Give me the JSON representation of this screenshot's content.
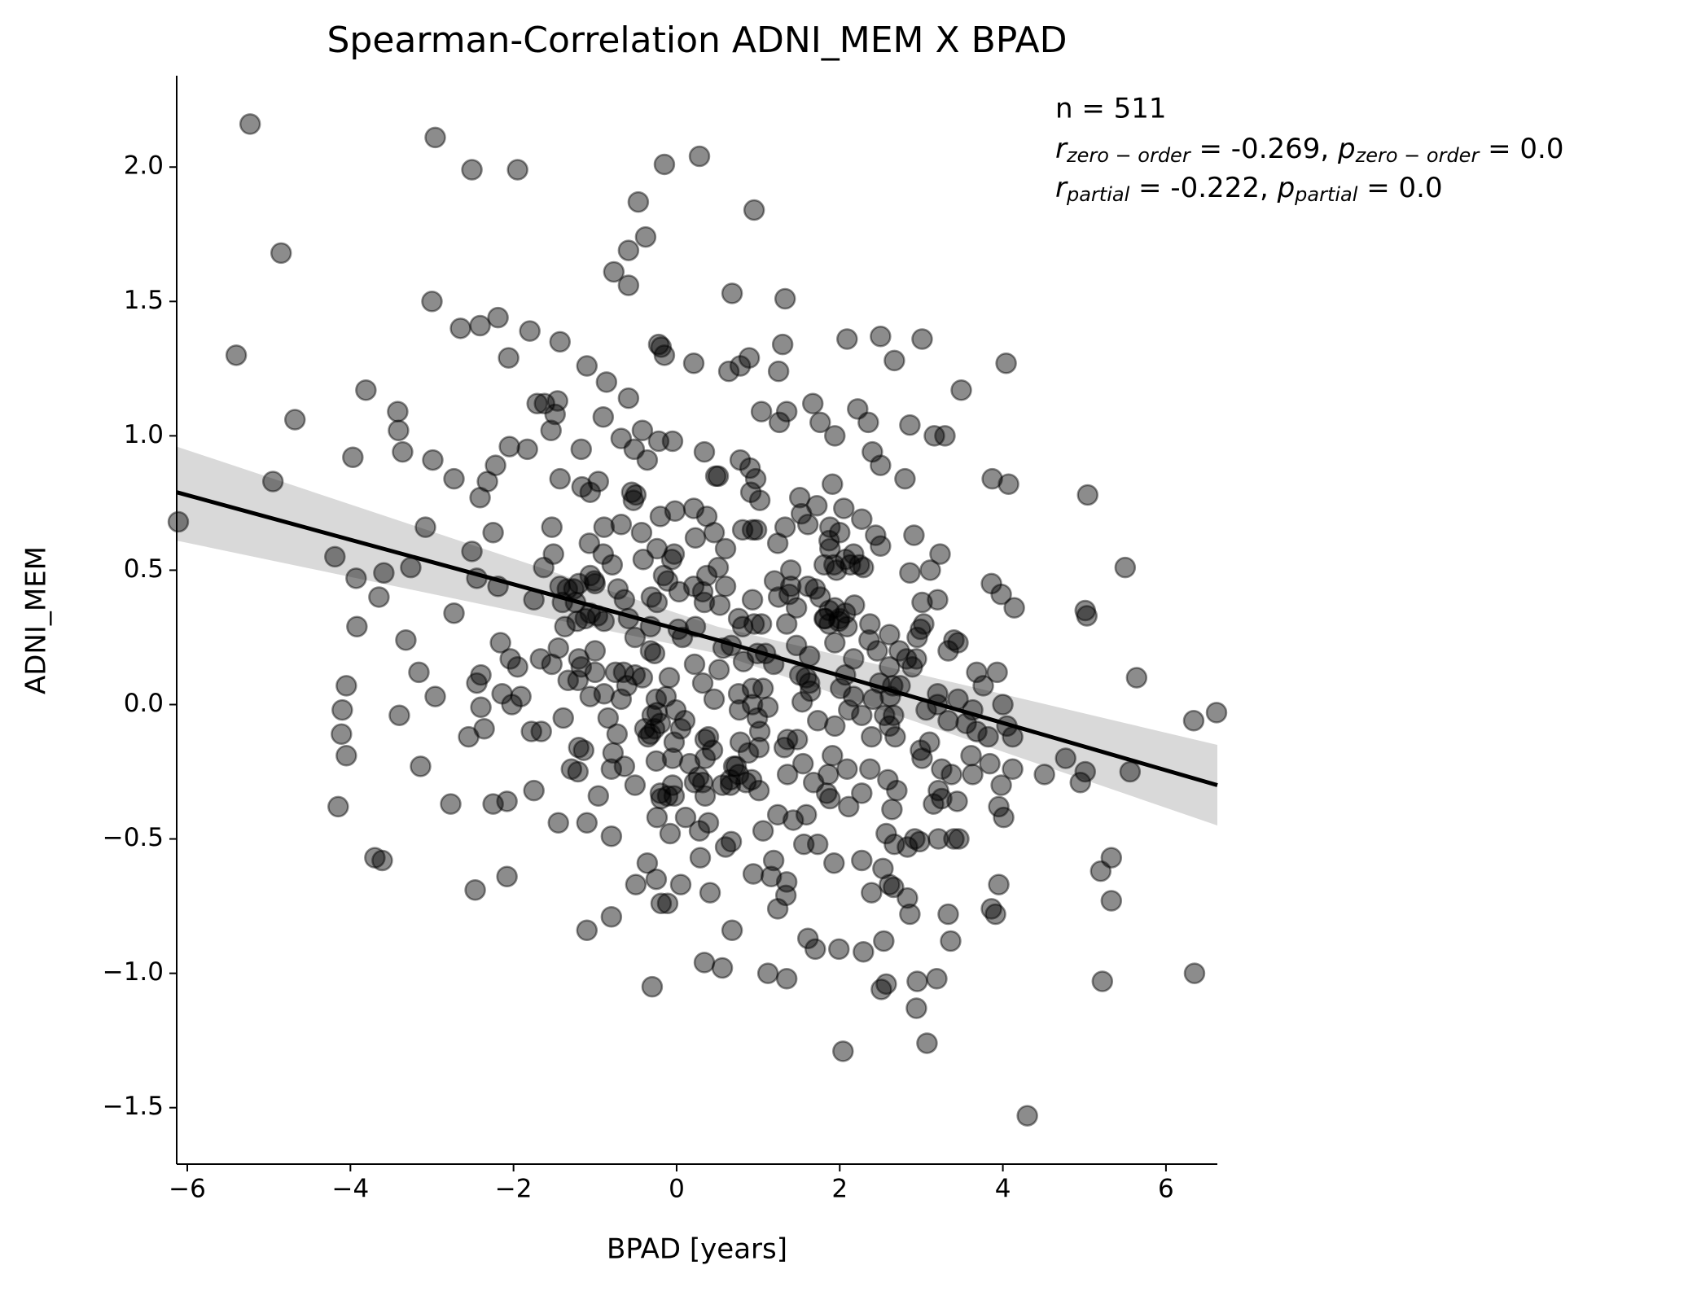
{
  "chart_data": {
    "type": "scatter",
    "title": "Spearman-Correlation ADNI_MEM X BPAD",
    "x_label": "BPAD [years]",
    "y_label": "ADNI_MEM",
    "color": "#000000",
    "alpha": 0.45,
    "xlim": [
      -6.13,
      6.63
    ],
    "ylim": [
      -1.71,
      2.34
    ],
    "xticks": [
      {
        "value": -6,
        "label": "−6"
      },
      {
        "value": -4,
        "label": "−4"
      },
      {
        "value": -2,
        "label": "−2"
      },
      0,
      2,
      4,
      6
    ],
    "yticks": [
      {
        "value": -1.5,
        "label": "−1.5"
      },
      {
        "value": -1.0,
        "label": "−1.0"
      },
      {
        "value": -0.5,
        "label": "−0.5"
      },
      {
        "value": 0.0,
        "label": "0.0"
      },
      {
        "value": 0.5,
        "label": "0.5"
      },
      {
        "value": 1.0,
        "label": "1.0"
      },
      {
        "value": 1.5,
        "label": "1.5"
      },
      {
        "value": 2.0,
        "label": "2.0"
      }
    ],
    "annotations": [
      "n = 511",
      [
        "r",
        "zero − order",
        " = -0.269, ",
        "p",
        "zero − order",
        " = 0.0"
      ],
      [
        "r",
        "partial",
        " = -0.222, ",
        "p",
        "partial",
        " = 0.0"
      ]
    ],
    "fit": {
      "color": "#000000",
      "band_color": "#d9d9d9",
      "x": [
        -6.13,
        0.5,
        6.63
      ],
      "values": [
        0.79,
        0.24,
        -0.3
      ],
      "ci_low": [
        0.61,
        0.19,
        -0.45
      ],
      "ci_high": [
        0.96,
        0.29,
        -0.15
      ]
    },
    "x": [
      -5.23,
      -5.4,
      -4.95,
      -6.11,
      -4.85,
      -4.68,
      -2.96,
      -2.51,
      -1.95,
      -3.0,
      -2.65,
      -2.41,
      -2.19,
      -2.06,
      -1.8,
      -1.43,
      -3.81,
      -3.42,
      -3.41,
      -3.36,
      -3.97,
      -2.99,
      -2.73,
      -2.32,
      -2.22,
      -2.05,
      -1.83,
      -1.71,
      -1.62,
      -1.49,
      -1.54,
      -1.46,
      -1.1,
      -0.86,
      -0.9,
      -1.17,
      -1.43,
      -1.16,
      -1.06,
      -0.96,
      -4.19,
      -3.93,
      -3.59,
      -3.26,
      -3.08,
      -3.65,
      -3.92,
      -3.32,
      -3.16,
      -4.05,
      -4.1,
      -4.11,
      -4.05,
      -3.4,
      -2.96,
      -2.73,
      -2.51,
      -2.45,
      -2.25,
      -2.41,
      -2.19,
      -2.16,
      -2.04,
      -2.45,
      -2.4,
      -2.4,
      -2.55,
      -2.36,
      -2.14,
      -2.02,
      -1.91,
      -1.95,
      -1.75,
      -1.67,
      -1.53,
      -1.63,
      -1.53,
      -1.51,
      -1.43,
      -1.4,
      -1.34,
      -1.37,
      -1.26,
      -1.2,
      -1.12,
      -1.06,
      -1.0,
      -1.07,
      -0.89,
      -0.9,
      -0.79,
      -0.68,
      -0.97,
      -0.72,
      -0.64,
      -0.59,
      -0.43,
      -0.41,
      -0.24,
      -0.2,
      -0.53,
      -0.55,
      -0.5,
      -0.42,
      -0.68,
      -0.52,
      -0.36,
      -0.22,
      -0.05,
      -0.59,
      -0.77,
      -0.59,
      -0.59,
      -0.38,
      -0.47,
      -0.15,
      0.28,
      0.95,
      -0.22,
      -0.15,
      -0.19,
      0.21,
      0.68,
      1.33,
      0.64,
      0.78,
      0.89,
      1.3,
      1.25,
      1.04,
      1.26,
      1.35,
      1.67,
      1.76,
      1.94,
      2.22,
      2.35,
      2.09,
      2.5,
      2.67,
      3.01,
      3.49,
      4.04,
      2.86,
      3.16,
      3.29,
      2.4,
      2.5,
      2.8,
      1.91,
      0.78,
      0.9,
      0.97,
      0.91,
      1.02,
      0.48,
      0.51,
      0.34,
      -0.02,
      0.37,
      0.46,
      0.93,
      0.98,
      0.81,
      1.33,
      1.53,
      1.61,
      1.51,
      1.72,
      1.88,
      1.87,
      2.05,
      2.27,
      2.44,
      2.5,
      2.91,
      3.23,
      3.87,
      4.07,
      3.86,
      3.98,
      4.14,
      5.04,
      5.5,
      5.01,
      5.03,
      5.64,
      6.34,
      6.62,
      6.35,
      5.2,
      5.33,
      5.33,
      5.22,
      5.56,
      5.01,
      4.95,
      4.77,
      4.51,
      4.3,
      3.91,
      3.86,
      3.95,
      4.01,
      3.95,
      3.98,
      4.12,
      4.05,
      4.12,
      4.0,
      3.93,
      3.68,
      3.76,
      3.63,
      3.55,
      3.68,
      3.82,
      3.61,
      3.84,
      3.63,
      3.37,
      3.44,
      3.46,
      3.4,
      3.25,
      3.21,
      3.25,
      3.15,
      3.33,
      3.2,
      3.2,
      3.33,
      3.4,
      3.45,
      3.03,
      2.99,
      2.95,
      3.01,
      2.86,
      3.11,
      2.94,
      2.89,
      2.99,
      3.01,
      2.92,
      2.83,
      2.98,
      2.67,
      3.21,
      3.33,
      3.36,
      3.19,
      2.95,
      2.94,
      3.07,
      2.57,
      2.51,
      2.54,
      2.29,
      1.99,
      1.7,
      1.61,
      2.04,
      2.86,
      2.83,
      2.61,
      2.66,
      2.39,
      2.53,
      2.27,
      2.57,
      2.64,
      2.7,
      2.59,
      2.37,
      2.27,
      2.11,
      1.84,
      1.88,
      1.91,
      1.68,
      1.73,
      1.94,
      1.93,
      1.73,
      1.59,
      1.56,
      1.35,
      1.34,
      1.19,
      1.16,
      1.24,
      1.12,
      1.35,
      0.94,
      1.06,
      1.01,
      1.01,
      0.92,
      0.88,
      0.78,
      0.76,
      0.7,
      0.73,
      0.6,
      0.67,
      0.41,
      0.68,
      0.56,
      0.34,
      -0.3,
      0.39,
      0.28,
      0.35,
      0.32,
      0.35,
      0.39,
      0.29,
      0.11,
      -0.05,
      -0.08,
      0.05,
      -0.19,
      -0.11,
      -0.25,
      -0.36,
      -0.5,
      -0.8,
      -0.8,
      -1.1,
      -0.64,
      -0.51,
      -0.24,
      -0.19,
      -0.2,
      -0.11,
      -0.03,
      -0.25,
      -0.27,
      -0.2,
      -0.01,
      -0.13,
      -0.09,
      -0.27,
      -0.32,
      -0.42,
      -0.51,
      -0.65,
      -0.75,
      -0.61,
      -0.39,
      -0.73,
      -0.78,
      -0.8,
      -0.89,
      -1.0,
      -1.17,
      -1.21,
      -1.33,
      -1.06,
      -0.84,
      -1.2,
      -1.14,
      -1.29,
      -1.21,
      -0.96,
      -1.1,
      -1.45,
      -1.39,
      -1.66,
      -1.78,
      -1.75,
      -2.08,
      -2.25,
      -2.77,
      -3.14,
      -3.7,
      -3.61,
      -4.15,
      -2.47,
      -2.08,
      -0.51,
      -0.32,
      -0.31,
      -0.24,
      -0.16,
      -0.11,
      -0.03,
      -0.06,
      0.03,
      0.02,
      0.07,
      0.23,
      0.34,
      0.32,
      0.37,
      0.51,
      0.6,
      0.53,
      0.6,
      0.76,
      0.81,
      0.67,
      0.82,
      0.76,
      0.95,
      0.93,
      1.04,
      0.99,
      1.09,
      0.93,
      1.06,
      0.99,
      1.02,
      1.19,
      1.2,
      1.24,
      1.25,
      1.38,
      1.47,
      1.35,
      1.4,
      1.4,
      1.47,
      1.51,
      1.59,
      1.61,
      1.7,
      1.76,
      1.54,
      1.63,
      1.36,
      1.32,
      1.48,
      1.82,
      1.87,
      1.87,
      1.94,
      1.99,
      1.94,
      2.0,
      2.07,
      2.09,
      2.18,
      2.13,
      2.17,
      2.0,
      2.07,
      1.93,
      1.81,
      1.88,
      2.24,
      2.29,
      2.37,
      2.36,
      2.17,
      2.46,
      2.61,
      2.61,
      2.73,
      2.82,
      2.49,
      2.65,
      2.74,
      2.62,
      2.55,
      2.66,
      2.61,
      2.39,
      2.68,
      2.11,
      2.27,
      2.01,
      2.07,
      2.17,
      2.41,
      3.06,
      3.1,
      3.2,
      3.45,
      1.63,
      1.81,
      1.96,
      0.21,
      0.23,
      0.21,
      0.22,
      0.32,
      0.52,
      0.46,
      0.57,
      0.93,
      1.12,
      1.36,
      1.24,
      1.43,
      1.55,
      1.86,
      2.09,
      1.64,
      0.77,
      0.35,
      0.16,
      0.22,
      0.27,
      0.66,
      0.85,
      0.66,
      0.56,
      0.44,
      -0.32,
      -0.03,
      -0.05,
      -0.89,
      -1.0,
      -1.2,
      -1.45,
      -1.24,
      -1.01,
      -1.06,
      -1.22,
      -0.68,
      -0.25,
      -0.24,
      -0.3,
      -0.35,
      0.1,
      0.05
    ],
    "values": [
      2.16,
      1.3,
      0.83,
      0.68,
      1.68,
      1.06,
      2.11,
      1.99,
      1.99,
      1.5,
      1.4,
      1.41,
      1.44,
      1.29,
      1.39,
      1.35,
      1.17,
      1.09,
      1.02,
      0.94,
      0.92,
      0.91,
      0.84,
      0.83,
      0.89,
      0.96,
      0.95,
      1.12,
      1.12,
      1.08,
      1.02,
      1.13,
      1.26,
      1.2,
      1.07,
      0.95,
      0.84,
      0.81,
      0.79,
      0.83,
      0.55,
      0.47,
      0.49,
      0.51,
      0.66,
      0.4,
      0.29,
      0.24,
      0.12,
      0.07,
      -0.02,
      -0.11,
      -0.19,
      -0.04,
      0.03,
      0.34,
      0.57,
      0.47,
      0.64,
      0.77,
      0.44,
      0.23,
      0.17,
      0.08,
      0.11,
      -0.01,
      -0.12,
      -0.09,
      0.04,
      0.0,
      0.03,
      0.14,
      0.39,
      0.17,
      0.15,
      0.51,
      0.66,
      0.56,
      0.44,
      0.38,
      0.43,
      0.29,
      0.43,
      0.45,
      0.32,
      0.48,
      0.45,
      0.6,
      0.66,
      0.56,
      0.52,
      0.67,
      0.33,
      0.43,
      0.39,
      0.32,
      0.64,
      0.54,
      0.58,
      0.7,
      0.76,
      0.79,
      0.78,
      1.02,
      0.99,
      0.95,
      0.91,
      0.98,
      0.98,
      1.14,
      1.61,
      1.56,
      1.69,
      1.74,
      1.87,
      2.01,
      2.04,
      1.84,
      1.34,
      1.3,
      1.33,
      1.27,
      1.53,
      1.51,
      1.24,
      1.26,
      1.29,
      1.34,
      1.24,
      1.09,
      1.05,
      1.09,
      1.12,
      1.05,
      1.0,
      1.1,
      1.05,
      1.36,
      1.37,
      1.28,
      1.36,
      1.17,
      1.27,
      1.04,
      1.0,
      1.0,
      0.94,
      0.89,
      0.84,
      0.82,
      0.91,
      0.88,
      0.84,
      0.79,
      0.76,
      0.85,
      0.85,
      0.94,
      0.72,
      0.7,
      0.64,
      0.65,
      0.65,
      0.65,
      0.66,
      0.71,
      0.67,
      0.77,
      0.74,
      0.66,
      0.61,
      0.73,
      0.69,
      0.63,
      0.59,
      0.63,
      0.56,
      0.84,
      0.82,
      0.45,
      0.41,
      0.36,
      0.78,
      0.51,
      0.35,
      0.33,
      0.1,
      -0.06,
      -0.03,
      -1.0,
      -0.62,
      -0.57,
      -0.73,
      -1.03,
      -0.25,
      -0.25,
      -0.29,
      -0.2,
      -0.26,
      -1.53,
      -0.78,
      -0.76,
      -0.67,
      -0.42,
      -0.38,
      -0.3,
      -0.24,
      -0.08,
      -0.12,
      0.0,
      0.12,
      0.12,
      0.07,
      -0.02,
      -0.07,
      -0.1,
      -0.12,
      -0.19,
      -0.22,
      -0.26,
      -0.26,
      -0.36,
      -0.5,
      -0.5,
      -0.35,
      -0.32,
      -0.24,
      -0.37,
      -0.06,
      0.04,
      0.39,
      0.2,
      0.24,
      0.23,
      0.3,
      0.28,
      0.25,
      0.38,
      0.49,
      0.5,
      0.17,
      0.14,
      -0.17,
      -0.2,
      -0.5,
      -0.53,
      -0.51,
      -0.52,
      -0.5,
      -0.78,
      -0.88,
      -1.02,
      -1.03,
      -1.13,
      -1.26,
      -1.04,
      -1.06,
      -0.88,
      -0.92,
      -0.91,
      -0.91,
      -0.87,
      -1.29,
      -0.78,
      -0.72,
      -0.67,
      -0.68,
      -0.7,
      -0.61,
      -0.58,
      -0.48,
      -0.39,
      -0.32,
      -0.28,
      -0.24,
      -0.33,
      -0.38,
      -0.33,
      -0.35,
      -0.19,
      -0.29,
      -0.06,
      -0.08,
      -0.59,
      -0.52,
      -0.41,
      -0.52,
      -0.66,
      -0.71,
      -0.58,
      -0.64,
      -0.76,
      -1.0,
      -1.02,
      -0.63,
      -0.47,
      -0.32,
      -0.16,
      -0.28,
      -0.18,
      -0.14,
      -0.26,
      -0.23,
      -0.23,
      -0.53,
      -0.51,
      -0.7,
      -0.84,
      -0.98,
      -0.96,
      -1.05,
      -0.44,
      -0.47,
      -0.34,
      -0.29,
      -0.2,
      -0.12,
      -0.57,
      -0.42,
      -0.3,
      -0.48,
      -0.67,
      -0.74,
      -0.74,
      -0.65,
      -0.59,
      -0.67,
      -0.79,
      -0.49,
      -0.84,
      -0.23,
      -0.3,
      -0.42,
      -0.35,
      -0.33,
      -0.34,
      -0.34,
      -0.21,
      -0.09,
      -0.07,
      -0.02,
      0.03,
      0.1,
      0.19,
      0.2,
      0.1,
      0.11,
      0.12,
      0.12,
      0.07,
      -0.09,
      -0.11,
      -0.18,
      -0.24,
      0.04,
      0.12,
      0.14,
      0.09,
      0.09,
      0.03,
      -0.05,
      -0.16,
      -0.17,
      -0.24,
      -0.25,
      -0.34,
      -0.44,
      -0.44,
      -0.05,
      -0.1,
      -0.1,
      -0.32,
      -0.36,
      -0.37,
      -0.37,
      -0.23,
      -0.57,
      -0.58,
      -0.38,
      -0.69,
      -0.64,
      0.25,
      0.29,
      0.4,
      0.38,
      0.48,
      0.46,
      0.56,
      0.54,
      0.42,
      0.28,
      0.25,
      0.29,
      0.38,
      0.42,
      0.48,
      0.51,
      0.44,
      0.37,
      0.58,
      0.32,
      0.29,
      0.22,
      0.16,
      0.04,
      0.3,
      0.39,
      0.3,
      0.19,
      0.19,
      0.06,
      0.06,
      -0.05,
      -0.1,
      0.15,
      0.46,
      0.6,
      0.4,
      0.41,
      0.36,
      0.3,
      0.44,
      0.5,
      0.22,
      0.11,
      0.1,
      0.44,
      0.43,
      0.4,
      0.01,
      0.08,
      -0.13,
      -0.16,
      -0.13,
      0.32,
      0.35,
      0.3,
      0.36,
      0.31,
      0.23,
      0.32,
      0.34,
      0.29,
      0.37,
      0.52,
      0.56,
      0.64,
      0.54,
      0.52,
      0.52,
      0.58,
      0.52,
      0.51,
      0.3,
      0.24,
      0.17,
      0.2,
      0.26,
      0.14,
      0.2,
      0.17,
      0.08,
      0.07,
      0.07,
      0.03,
      -0.04,
      -0.04,
      -0.08,
      -0.12,
      -0.12,
      -0.02,
      -0.04,
      0.06,
      0.11,
      0.03,
      0.02,
      -0.02,
      -0.14,
      0.0,
      0.02,
      0.18,
      0.32,
      0.5,
      0.73,
      0.62,
      0.44,
      0.15,
      0.08,
      0.13,
      0.02,
      0.21,
      0.0,
      -0.01,
      -0.26,
      -0.41,
      -0.43,
      -0.22,
      -0.26,
      -0.24,
      0.05,
      -0.02,
      -0.13,
      -0.22,
      -0.29,
      -0.27,
      -0.28,
      -0.29,
      -0.3,
      -0.3,
      -0.17,
      -0.11,
      -0.14,
      -0.2,
      0.31,
      0.2,
      0.17,
      0.21,
      0.38,
      0.46,
      0.34,
      0.31,
      0.02,
      0.02,
      -0.03,
      -0.04,
      -0.12,
      -0.06,
      -0.09
    ]
  }
}
